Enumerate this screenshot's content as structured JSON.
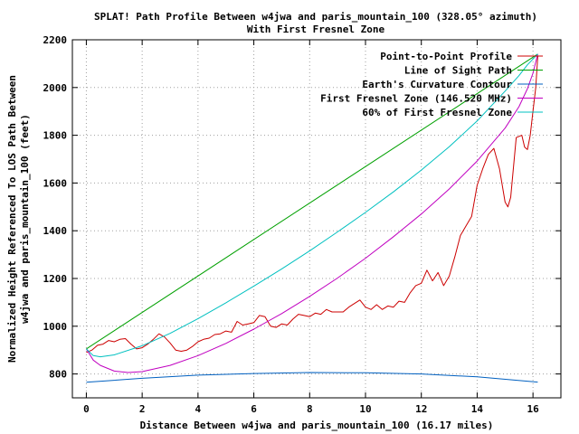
{
  "chart_data": {
    "type": "line",
    "title": "SPLAT! Path Profile Between w4jwa and paris_mountain_100 (328.05° azimuth)",
    "subtitle": "With First Fresnel Zone",
    "xlabel": "Distance Between w4jwa and paris_mountain_100 (16.17 miles)",
    "ylabel": "Normalized Height Referenced To LOS Path Between\nw4jwa and paris_mountain_100 (feet)",
    "xlim": [
      -0.5,
      17
    ],
    "ylim": [
      700,
      2200
    ],
    "xticks": [
      0,
      2,
      4,
      6,
      8,
      10,
      12,
      14,
      16
    ],
    "yticks": [
      800,
      1000,
      1200,
      1400,
      1600,
      1800,
      2000,
      2200
    ],
    "grid": true,
    "legend_position": "top-right",
    "series": [
      {
        "name": "Point-to-Point Profile",
        "color": "#cc0000",
        "points": [
          [
            0,
            890
          ],
          [
            0.2,
            900
          ],
          [
            0.4,
            920
          ],
          [
            0.6,
            925
          ],
          [
            0.8,
            940
          ],
          [
            1.0,
            935
          ],
          [
            1.2,
            945
          ],
          [
            1.4,
            948
          ],
          [
            1.6,
            925
          ],
          [
            1.8,
            905
          ],
          [
            2.0,
            910
          ],
          [
            2.2,
            925
          ],
          [
            2.4,
            945
          ],
          [
            2.6,
            968
          ],
          [
            2.8,
            955
          ],
          [
            3.0,
            930
          ],
          [
            3.2,
            900
          ],
          [
            3.4,
            895
          ],
          [
            3.6,
            900
          ],
          [
            3.8,
            915
          ],
          [
            4.0,
            935
          ],
          [
            4.2,
            945
          ],
          [
            4.4,
            950
          ],
          [
            4.6,
            965
          ],
          [
            4.8,
            968
          ],
          [
            5.0,
            980
          ],
          [
            5.2,
            975
          ],
          [
            5.4,
            1020
          ],
          [
            5.6,
            1005
          ],
          [
            5.8,
            1010
          ],
          [
            6.0,
            1015
          ],
          [
            6.2,
            1045
          ],
          [
            6.4,
            1040
          ],
          [
            6.6,
            1000
          ],
          [
            6.8,
            995
          ],
          [
            7.0,
            1010
          ],
          [
            7.2,
            1005
          ],
          [
            7.4,
            1030
          ],
          [
            7.6,
            1050
          ],
          [
            7.8,
            1045
          ],
          [
            8.0,
            1040
          ],
          [
            8.2,
            1055
          ],
          [
            8.4,
            1050
          ],
          [
            8.6,
            1070
          ],
          [
            8.8,
            1060
          ],
          [
            9.0,
            1060
          ],
          [
            9.2,
            1060
          ],
          [
            9.4,
            1080
          ],
          [
            9.6,
            1095
          ],
          [
            9.8,
            1110
          ],
          [
            10.0,
            1080
          ],
          [
            10.2,
            1070
          ],
          [
            10.4,
            1090
          ],
          [
            10.6,
            1070
          ],
          [
            10.8,
            1085
          ],
          [
            11.0,
            1080
          ],
          [
            11.2,
            1105
          ],
          [
            11.4,
            1100
          ],
          [
            11.6,
            1140
          ],
          [
            11.8,
            1170
          ],
          [
            12.0,
            1180
          ],
          [
            12.2,
            1235
          ],
          [
            12.4,
            1190
          ],
          [
            12.6,
            1225
          ],
          [
            12.8,
            1170
          ],
          [
            13.0,
            1210
          ],
          [
            13.2,
            1290
          ],
          [
            13.4,
            1380
          ],
          [
            13.6,
            1420
          ],
          [
            13.8,
            1460
          ],
          [
            14.0,
            1590
          ],
          [
            14.2,
            1660
          ],
          [
            14.4,
            1720
          ],
          [
            14.6,
            1745
          ],
          [
            14.8,
            1660
          ],
          [
            15.0,
            1520
          ],
          [
            15.1,
            1500
          ],
          [
            15.2,
            1540
          ],
          [
            15.4,
            1790
          ],
          [
            15.6,
            1800
          ],
          [
            15.7,
            1750
          ],
          [
            15.8,
            1740
          ],
          [
            15.9,
            1800
          ],
          [
            16.0,
            1900
          ],
          [
            16.1,
            2000
          ],
          [
            16.17,
            2130
          ]
        ]
      },
      {
        "name": "Line of Sight Path",
        "color": "#00a000",
        "points": [
          [
            0,
            905
          ],
          [
            16.17,
            2140
          ]
        ]
      },
      {
        "name": "Earth's Curvature Contour",
        "color": "#0060c0",
        "points": [
          [
            0,
            765
          ],
          [
            2,
            782
          ],
          [
            4,
            795
          ],
          [
            6,
            802
          ],
          [
            8,
            806
          ],
          [
            10,
            805
          ],
          [
            12,
            800
          ],
          [
            14,
            788
          ],
          [
            16.17,
            766
          ]
        ]
      },
      {
        "name": "First Fresnel Zone (146.520 MHz)",
        "color": "#c000c0",
        "points": [
          [
            0,
            905
          ],
          [
            0.25,
            858
          ],
          [
            0.5,
            836
          ],
          [
            1,
            812
          ],
          [
            1.5,
            806
          ],
          [
            2,
            810
          ],
          [
            3,
            836
          ],
          [
            4,
            877
          ],
          [
            5,
            928
          ],
          [
            6,
            988
          ],
          [
            7,
            1053
          ],
          [
            8,
            1125
          ],
          [
            9,
            1202
          ],
          [
            10,
            1285
          ],
          [
            11,
            1375
          ],
          [
            12,
            1470
          ],
          [
            13,
            1575
          ],
          [
            14,
            1692
          ],
          [
            15,
            1830
          ],
          [
            15.5,
            1920
          ],
          [
            15.8,
            1995
          ],
          [
            16,
            2060
          ],
          [
            16.17,
            2140
          ]
        ]
      },
      {
        "name": "60% of First Fresnel Zone",
        "color": "#00c0c0",
        "points": [
          [
            0,
            905
          ],
          [
            0.25,
            877
          ],
          [
            0.5,
            872
          ],
          [
            1,
            880
          ],
          [
            2,
            918
          ],
          [
            3,
            970
          ],
          [
            4,
            1032
          ],
          [
            5,
            1098
          ],
          [
            6,
            1168
          ],
          [
            7,
            1240
          ],
          [
            8,
            1316
          ],
          [
            9,
            1395
          ],
          [
            10,
            1477
          ],
          [
            11,
            1563
          ],
          [
            12,
            1654
          ],
          [
            13,
            1752
          ],
          [
            14,
            1860
          ],
          [
            15,
            1985
          ],
          [
            15.5,
            2050
          ],
          [
            15.8,
            2095
          ],
          [
            16.17,
            2140
          ]
        ]
      }
    ]
  }
}
